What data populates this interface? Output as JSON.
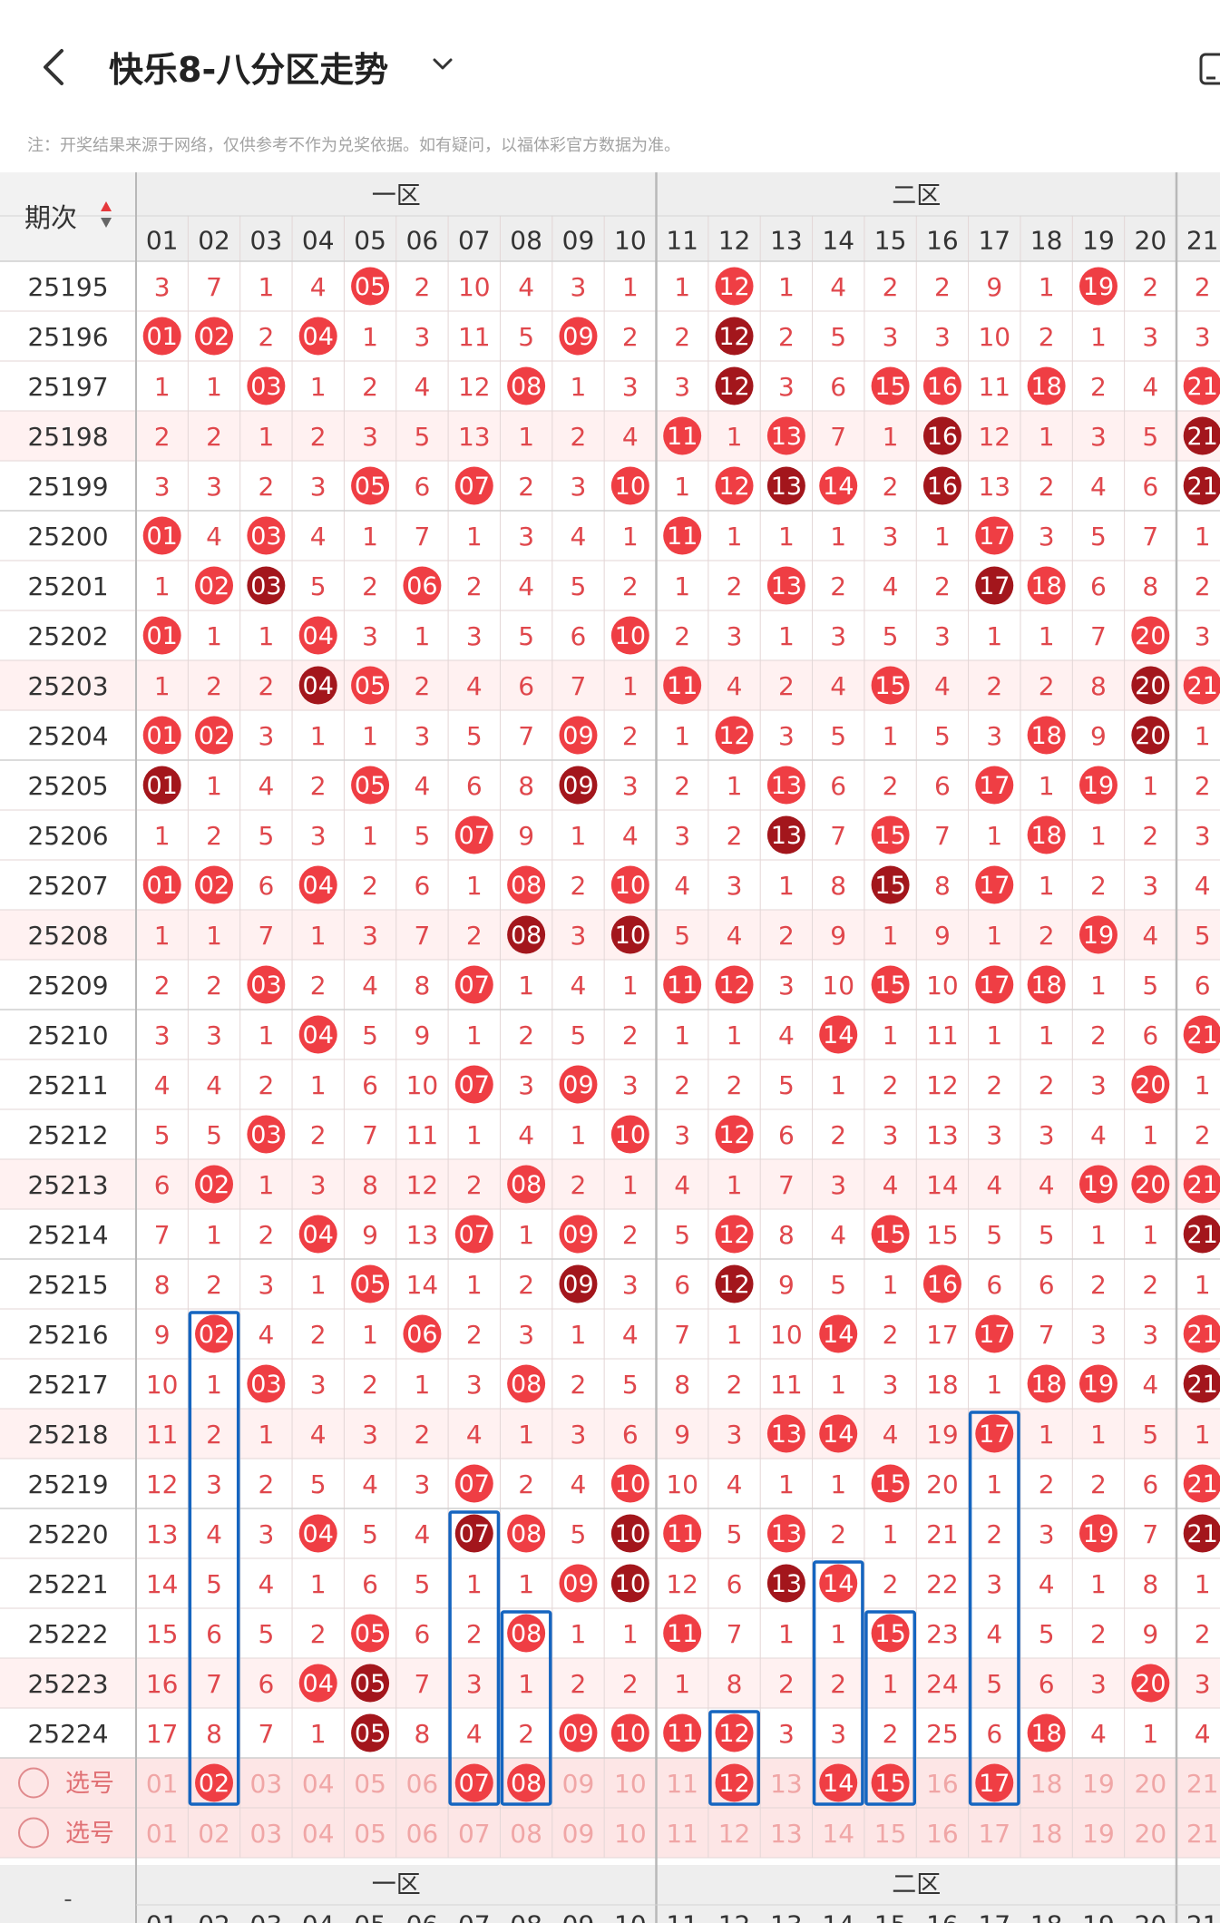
{
  "header": {
    "title": "快乐8-八分区走势",
    "notice": "注：开奖结果来源于网络，仅供参考不作为兑奖依据。如有疑问，以福体彩官方数据为准。"
  },
  "table": {
    "period_header": "期次",
    "zones": [
      "一区",
      "二区"
    ],
    "footer_period_header": "-",
    "columns": [
      "01",
      "02",
      "03",
      "04",
      "05",
      "06",
      "07",
      "08",
      "09",
      "10",
      "11",
      "12",
      "13",
      "14",
      "15",
      "16",
      "17",
      "18",
      "19",
      "20",
      "21"
    ],
    "rows": [
      {
        "period": "25195",
        "cells": [
          "3",
          "7",
          "1",
          "4",
          "05",
          "2",
          "10",
          "4",
          "3",
          "1",
          "1",
          "12",
          "1",
          "4",
          "2",
          "2",
          "9",
          "1",
          "19",
          "2",
          "2"
        ]
      },
      {
        "period": "25196",
        "cells": [
          "01",
          "02",
          "2",
          "04",
          "1",
          "3",
          "11",
          "5",
          "09",
          "2",
          "2",
          "12",
          "2",
          "5",
          "3",
          "3",
          "10",
          "2",
          "1",
          "3",
          "3"
        ]
      },
      {
        "period": "25197",
        "cells": [
          "1",
          "1",
          "03",
          "1",
          "2",
          "4",
          "12",
          "08",
          "1",
          "3",
          "3",
          "12",
          "3",
          "6",
          "15",
          "16",
          "11",
          "18",
          "2",
          "4",
          "21"
        ]
      },
      {
        "period": "25198",
        "cells": [
          "2",
          "2",
          "1",
          "2",
          "3",
          "5",
          "13",
          "1",
          "2",
          "4",
          "11",
          "1",
          "13",
          "7",
          "1",
          "16",
          "12",
          "1",
          "3",
          "5",
          "21"
        ]
      },
      {
        "period": "25199",
        "cells": [
          "3",
          "3",
          "2",
          "3",
          "05",
          "6",
          "07",
          "2",
          "3",
          "10",
          "1",
          "12",
          "13",
          "14",
          "2",
          "16",
          "13",
          "2",
          "4",
          "6",
          "21"
        ]
      },
      {
        "period": "25200",
        "cells": [
          "01",
          "4",
          "03",
          "4",
          "1",
          "7",
          "1",
          "3",
          "4",
          "1",
          "11",
          "1",
          "1",
          "1",
          "3",
          "1",
          "17",
          "3",
          "5",
          "7",
          "1"
        ]
      },
      {
        "period": "25201",
        "cells": [
          "1",
          "02",
          "03",
          "5",
          "2",
          "06",
          "2",
          "4",
          "5",
          "2",
          "1",
          "2",
          "13",
          "2",
          "4",
          "2",
          "17",
          "18",
          "6",
          "8",
          "2"
        ]
      },
      {
        "period": "25202",
        "cells": [
          "01",
          "1",
          "1",
          "04",
          "3",
          "1",
          "3",
          "5",
          "6",
          "10",
          "2",
          "3",
          "1",
          "3",
          "5",
          "3",
          "1",
          "1",
          "7",
          "20",
          "3"
        ]
      },
      {
        "period": "25203",
        "cells": [
          "1",
          "2",
          "2",
          "04",
          "05",
          "2",
          "4",
          "6",
          "7",
          "1",
          "11",
          "4",
          "2",
          "4",
          "15",
          "4",
          "2",
          "2",
          "8",
          "20",
          "21"
        ]
      },
      {
        "period": "25204",
        "cells": [
          "01",
          "02",
          "3",
          "1",
          "1",
          "3",
          "5",
          "7",
          "09",
          "2",
          "1",
          "12",
          "3",
          "5",
          "1",
          "5",
          "3",
          "18",
          "9",
          "20",
          "1"
        ]
      },
      {
        "period": "25205",
        "cells": [
          "01",
          "1",
          "4",
          "2",
          "05",
          "4",
          "6",
          "8",
          "09",
          "3",
          "2",
          "1",
          "13",
          "6",
          "2",
          "6",
          "17",
          "1",
          "19",
          "1",
          "2"
        ]
      },
      {
        "period": "25206",
        "cells": [
          "1",
          "2",
          "5",
          "3",
          "1",
          "5",
          "07",
          "9",
          "1",
          "4",
          "3",
          "2",
          "13",
          "7",
          "15",
          "7",
          "1",
          "18",
          "1",
          "2",
          "3"
        ]
      },
      {
        "period": "25207",
        "cells": [
          "01",
          "02",
          "6",
          "04",
          "2",
          "6",
          "1",
          "08",
          "2",
          "10",
          "4",
          "3",
          "1",
          "8",
          "15",
          "8",
          "17",
          "1",
          "2",
          "3",
          "4"
        ]
      },
      {
        "period": "25208",
        "cells": [
          "1",
          "1",
          "7",
          "1",
          "3",
          "7",
          "2",
          "08",
          "3",
          "10",
          "5",
          "4",
          "2",
          "9",
          "1",
          "9",
          "1",
          "2",
          "19",
          "4",
          "5"
        ]
      },
      {
        "period": "25209",
        "cells": [
          "2",
          "2",
          "03",
          "2",
          "4",
          "8",
          "07",
          "1",
          "4",
          "1",
          "11",
          "12",
          "3",
          "10",
          "15",
          "10",
          "17",
          "18",
          "1",
          "5",
          "6"
        ]
      },
      {
        "period": "25210",
        "cells": [
          "3",
          "3",
          "1",
          "04",
          "5",
          "9",
          "1",
          "2",
          "5",
          "2",
          "1",
          "1",
          "4",
          "14",
          "1",
          "11",
          "1",
          "1",
          "2",
          "6",
          "21"
        ]
      },
      {
        "period": "25211",
        "cells": [
          "4",
          "4",
          "2",
          "1",
          "6",
          "10",
          "07",
          "3",
          "09",
          "3",
          "2",
          "2",
          "5",
          "1",
          "2",
          "12",
          "2",
          "2",
          "3",
          "20",
          "1"
        ]
      },
      {
        "period": "25212",
        "cells": [
          "5",
          "5",
          "03",
          "2",
          "7",
          "11",
          "1",
          "4",
          "1",
          "10",
          "3",
          "12",
          "6",
          "2",
          "3",
          "13",
          "3",
          "3",
          "4",
          "1",
          "2"
        ]
      },
      {
        "period": "25213",
        "cells": [
          "6",
          "02",
          "1",
          "3",
          "8",
          "12",
          "2",
          "08",
          "2",
          "1",
          "4",
          "1",
          "7",
          "3",
          "4",
          "14",
          "4",
          "4",
          "19",
          "20",
          "21"
        ]
      },
      {
        "period": "25214",
        "cells": [
          "7",
          "1",
          "2",
          "04",
          "9",
          "13",
          "07",
          "1",
          "09",
          "2",
          "5",
          "12",
          "8",
          "4",
          "15",
          "15",
          "5",
          "5",
          "1",
          "1",
          "21"
        ]
      },
      {
        "period": "25215",
        "cells": [
          "8",
          "2",
          "3",
          "1",
          "05",
          "14",
          "1",
          "2",
          "09",
          "3",
          "6",
          "12",
          "9",
          "5",
          "1",
          "16",
          "6",
          "6",
          "2",
          "2",
          "1"
        ]
      },
      {
        "period": "25216",
        "cells": [
          "9",
          "02",
          "4",
          "2",
          "1",
          "06",
          "2",
          "3",
          "1",
          "4",
          "7",
          "1",
          "10",
          "14",
          "2",
          "17",
          "17",
          "7",
          "3",
          "3",
          "21"
        ]
      },
      {
        "period": "25217",
        "cells": [
          "10",
          "1",
          "03",
          "3",
          "2",
          "1",
          "3",
          "08",
          "2",
          "5",
          "8",
          "2",
          "11",
          "1",
          "3",
          "18",
          "1",
          "18",
          "19",
          "4",
          "21"
        ]
      },
      {
        "period": "25218",
        "cells": [
          "11",
          "2",
          "1",
          "4",
          "3",
          "2",
          "4",
          "1",
          "3",
          "6",
          "9",
          "3",
          "13",
          "14",
          "4",
          "19",
          "17",
          "1",
          "1",
          "5",
          "1"
        ]
      },
      {
        "period": "25219",
        "cells": [
          "12",
          "3",
          "2",
          "5",
          "4",
          "3",
          "07",
          "2",
          "4",
          "10",
          "10",
          "4",
          "1",
          "1",
          "15",
          "20",
          "1",
          "2",
          "2",
          "6",
          "21"
        ]
      },
      {
        "period": "25220",
        "cells": [
          "13",
          "4",
          "3",
          "04",
          "5",
          "4",
          "07",
          "08",
          "5",
          "10",
          "11",
          "5",
          "13",
          "2",
          "1",
          "21",
          "2",
          "3",
          "19",
          "7",
          "21"
        ]
      },
      {
        "period": "25221",
        "cells": [
          "14",
          "5",
          "4",
          "1",
          "6",
          "5",
          "1",
          "1",
          "09",
          "10",
          "12",
          "6",
          "13",
          "14",
          "2",
          "22",
          "3",
          "4",
          "1",
          "8",
          "1"
        ]
      },
      {
        "period": "25222",
        "cells": [
          "15",
          "6",
          "5",
          "2",
          "05",
          "6",
          "2",
          "08",
          "1",
          "1",
          "11",
          "7",
          "1",
          "1",
          "15",
          "23",
          "4",
          "5",
          "2",
          "9",
          "2"
        ]
      },
      {
        "period": "25223",
        "cells": [
          "16",
          "7",
          "6",
          "04",
          "05",
          "7",
          "3",
          "1",
          "2",
          "2",
          "1",
          "8",
          "2",
          "2",
          "1",
          "24",
          "5",
          "6",
          "3",
          "20",
          "3"
        ]
      },
      {
        "period": "25224",
        "cells": [
          "17",
          "8",
          "7",
          "1",
          "05",
          "8",
          "4",
          "2",
          "09",
          "10",
          "11",
          "12",
          "3",
          "3",
          "2",
          "25",
          "6",
          "18",
          "4",
          "1",
          "4"
        ]
      }
    ],
    "select_rows": [
      {
        "label": "选号",
        "cells": [
          "01",
          "02",
          "03",
          "04",
          "05",
          "06",
          "07",
          "08",
          "09",
          "10",
          "11",
          "12",
          "13",
          "14",
          "15",
          "16",
          "17",
          "18",
          "19",
          "20",
          "21"
        ]
      },
      {
        "label": "选号",
        "cells": [
          "01",
          "02",
          "03",
          "04",
          "05",
          "06",
          "07",
          "08",
          "09",
          "10",
          "11",
          "12",
          "13",
          "14",
          "15",
          "16",
          "17",
          "18",
          "19",
          "20",
          "21"
        ]
      }
    ],
    "selected_numbers": [
      "02",
      "07",
      "08",
      "12",
      "14",
      "15",
      "17"
    ]
  },
  "colors": {
    "hit": "#ef3e44",
    "repeat_hit": "#a3161c",
    "miss_text": "#e0474c",
    "selection_box": "#1565c0",
    "header_bg": "#eeeeee",
    "grid_line": "#e3d6d6",
    "zone_divider": "#b8b8b8",
    "band_pink": "#fff1f1",
    "select_row_bg": "#fde6e6",
    "footer_text": "#f0a6a6"
  },
  "icons": {
    "back": "chevron-left-icon",
    "dropdown": "chevron-down-icon",
    "device": "device-icon",
    "sort": "sort-arrows-icon",
    "select_radio": "radio-circle-icon"
  }
}
